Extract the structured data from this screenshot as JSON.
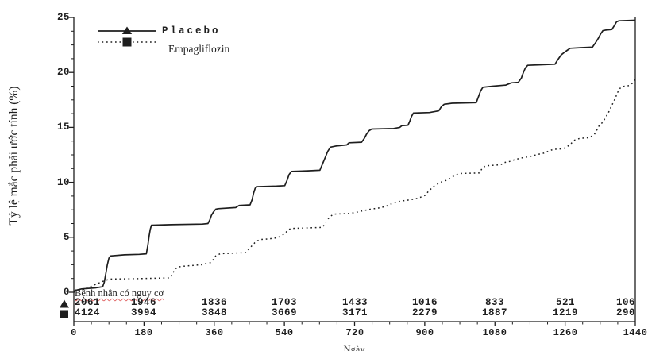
{
  "chart_data": {
    "type": "line",
    "title": "",
    "xlabel": "Ngày",
    "ylabel": "Tỷ lệ mắc phải ước tính (%)",
    "xlim": [
      0,
      1440
    ],
    "ylim": [
      0,
      25
    ],
    "x_ticks": [
      0,
      180,
      360,
      540,
      720,
      900,
      1080,
      1260,
      1440
    ],
    "y_ticks": [
      0,
      5,
      10,
      15,
      20,
      25
    ],
    "grid": false,
    "legend_position": "top-left",
    "series": [
      {
        "name": "Placebo",
        "style": "solid",
        "marker": "triangle",
        "points": [
          [
            0,
            0.1
          ],
          [
            8,
            0.2
          ],
          [
            20,
            0.3
          ],
          [
            55,
            0.4
          ],
          [
            74,
            0.5
          ],
          [
            78,
            0.9
          ],
          [
            82,
            1.7
          ],
          [
            86,
            2.5
          ],
          [
            90,
            3.1
          ],
          [
            94,
            3.3
          ],
          [
            130,
            3.4
          ],
          [
            168,
            3.45
          ],
          [
            186,
            3.5
          ],
          [
            190,
            4.3
          ],
          [
            193,
            5.1
          ],
          [
            196,
            5.7
          ],
          [
            199,
            6.1
          ],
          [
            250,
            6.15
          ],
          [
            330,
            6.2
          ],
          [
            344,
            6.25
          ],
          [
            349,
            6.6
          ],
          [
            353,
            7.0
          ],
          [
            358,
            7.3
          ],
          [
            364,
            7.55
          ],
          [
            370,
            7.6
          ],
          [
            415,
            7.7
          ],
          [
            424,
            7.9
          ],
          [
            452,
            7.95
          ],
          [
            457,
            8.4
          ],
          [
            461,
            9.0
          ],
          [
            465,
            9.45
          ],
          [
            470,
            9.6
          ],
          [
            520,
            9.65
          ],
          [
            541,
            9.7
          ],
          [
            547,
            10.2
          ],
          [
            552,
            10.7
          ],
          [
            558,
            11.0
          ],
          [
            600,
            11.05
          ],
          [
            631,
            11.1
          ],
          [
            637,
            11.6
          ],
          [
            644,
            12.2
          ],
          [
            651,
            12.8
          ],
          [
            658,
            13.2
          ],
          [
            672,
            13.3
          ],
          [
            700,
            13.4
          ],
          [
            706,
            13.6
          ],
          [
            738,
            13.65
          ],
          [
            745,
            14.0
          ],
          [
            751,
            14.4
          ],
          [
            757,
            14.7
          ],
          [
            764,
            14.85
          ],
          [
            820,
            14.9
          ],
          [
            836,
            15.0
          ],
          [
            841,
            15.15
          ],
          [
            857,
            15.2
          ],
          [
            862,
            15.6
          ],
          [
            866,
            16.0
          ],
          [
            871,
            16.3
          ],
          [
            912,
            16.35
          ],
          [
            936,
            16.5
          ],
          [
            943,
            16.9
          ],
          [
            950,
            17.1
          ],
          [
            970,
            17.2
          ],
          [
            1032,
            17.25
          ],
          [
            1038,
            17.8
          ],
          [
            1043,
            18.3
          ],
          [
            1049,
            18.65
          ],
          [
            1075,
            18.75
          ],
          [
            1108,
            18.85
          ],
          [
            1122,
            19.05
          ],
          [
            1140,
            19.1
          ],
          [
            1148,
            19.5
          ],
          [
            1153,
            20.0
          ],
          [
            1158,
            20.4
          ],
          [
            1164,
            20.65
          ],
          [
            1198,
            20.7
          ],
          [
            1234,
            20.75
          ],
          [
            1242,
            21.2
          ],
          [
            1250,
            21.6
          ],
          [
            1257,
            21.8
          ],
          [
            1265,
            22.0
          ],
          [
            1273,
            22.2
          ],
          [
            1298,
            22.25
          ],
          [
            1330,
            22.3
          ],
          [
            1338,
            22.7
          ],
          [
            1345,
            23.1
          ],
          [
            1351,
            23.5
          ],
          [
            1357,
            23.8
          ],
          [
            1364,
            23.85
          ],
          [
            1380,
            23.9
          ],
          [
            1386,
            24.25
          ],
          [
            1392,
            24.6
          ],
          [
            1398,
            24.7
          ],
          [
            1440,
            24.75
          ]
        ]
      },
      {
        "name": "Empagliflozin",
        "style": "dotted",
        "marker": "square",
        "points": [
          [
            0,
            0
          ],
          [
            15,
            0.15
          ],
          [
            35,
            0.4
          ],
          [
            55,
            0.7
          ],
          [
            75,
            1.0
          ],
          [
            92,
            1.2
          ],
          [
            180,
            1.25
          ],
          [
            246,
            1.3
          ],
          [
            252,
            1.6
          ],
          [
            258,
            2.0
          ],
          [
            266,
            2.3
          ],
          [
            290,
            2.4
          ],
          [
            330,
            2.5
          ],
          [
            338,
            2.6
          ],
          [
            352,
            2.7
          ],
          [
            358,
            3.0
          ],
          [
            364,
            3.3
          ],
          [
            375,
            3.5
          ],
          [
            400,
            3.55
          ],
          [
            440,
            3.6
          ],
          [
            448,
            3.9
          ],
          [
            456,
            4.2
          ],
          [
            464,
            4.5
          ],
          [
            472,
            4.7
          ],
          [
            478,
            4.8
          ],
          [
            500,
            4.85
          ],
          [
            520,
            4.95
          ],
          [
            528,
            5.05
          ],
          [
            540,
            5.3
          ],
          [
            548,
            5.6
          ],
          [
            556,
            5.8
          ],
          [
            600,
            5.85
          ],
          [
            638,
            5.9
          ],
          [
            643,
            6.2
          ],
          [
            649,
            6.5
          ],
          [
            656,
            6.85
          ],
          [
            666,
            7.1
          ],
          [
            700,
            7.15
          ],
          [
            722,
            7.25
          ],
          [
            740,
            7.4
          ],
          [
            760,
            7.55
          ],
          [
            780,
            7.65
          ],
          [
            800,
            7.8
          ],
          [
            818,
            8.1
          ],
          [
            840,
            8.3
          ],
          [
            862,
            8.4
          ],
          [
            882,
            8.55
          ],
          [
            900,
            8.8
          ],
          [
            910,
            9.2
          ],
          [
            925,
            9.7
          ],
          [
            940,
            10.0
          ],
          [
            958,
            10.2
          ],
          [
            978,
            10.65
          ],
          [
            990,
            10.8
          ],
          [
            1040,
            10.85
          ],
          [
            1048,
            11.3
          ],
          [
            1056,
            11.5
          ],
          [
            1095,
            11.6
          ],
          [
            1104,
            11.8
          ],
          [
            1118,
            11.9
          ],
          [
            1130,
            12.05
          ],
          [
            1145,
            12.2
          ],
          [
            1170,
            12.35
          ],
          [
            1185,
            12.5
          ],
          [
            1205,
            12.65
          ],
          [
            1218,
            12.85
          ],
          [
            1230,
            13.0
          ],
          [
            1255,
            13.05
          ],
          [
            1270,
            13.35
          ],
          [
            1285,
            13.85
          ],
          [
            1298,
            14.0
          ],
          [
            1320,
            14.05
          ],
          [
            1334,
            14.3
          ],
          [
            1342,
            14.8
          ],
          [
            1348,
            15.2
          ],
          [
            1356,
            15.45
          ],
          [
            1364,
            15.9
          ],
          [
            1372,
            16.4
          ],
          [
            1380,
            17.0
          ],
          [
            1388,
            17.6
          ],
          [
            1395,
            18.2
          ],
          [
            1402,
            18.6
          ],
          [
            1412,
            18.75
          ],
          [
            1424,
            18.8
          ],
          [
            1432,
            19.0
          ],
          [
            1440,
            19.4
          ]
        ]
      }
    ]
  },
  "legend": {
    "items": [
      {
        "label": "Placebo",
        "marker": "triangle",
        "line": "solid"
      },
      {
        "label": "Empagliflozin",
        "marker": "square",
        "line": "dotted"
      }
    ]
  },
  "risk_table": {
    "title": "Bệnh nhân có nguy cơ",
    "columns": [
      0,
      180,
      360,
      540,
      720,
      900,
      1080,
      1260,
      1440
    ],
    "rows": [
      {
        "group": "Placebo",
        "marker": "triangle",
        "values": [
          "2061",
          "1946",
          "1836",
          "1703",
          "1433",
          "1016",
          "833",
          "521",
          "106"
        ]
      },
      {
        "group": "Empagliflozin",
        "marker": "square",
        "values": [
          "4124",
          "3994",
          "3848",
          "3669",
          "3171",
          "2279",
          "1887",
          "1219",
          "290"
        ]
      }
    ]
  },
  "colors": {
    "line": "#1e1e1e",
    "dotted_line": "#2e2e2e",
    "risk_underline": "#e06666",
    "background": "#ffffff"
  }
}
